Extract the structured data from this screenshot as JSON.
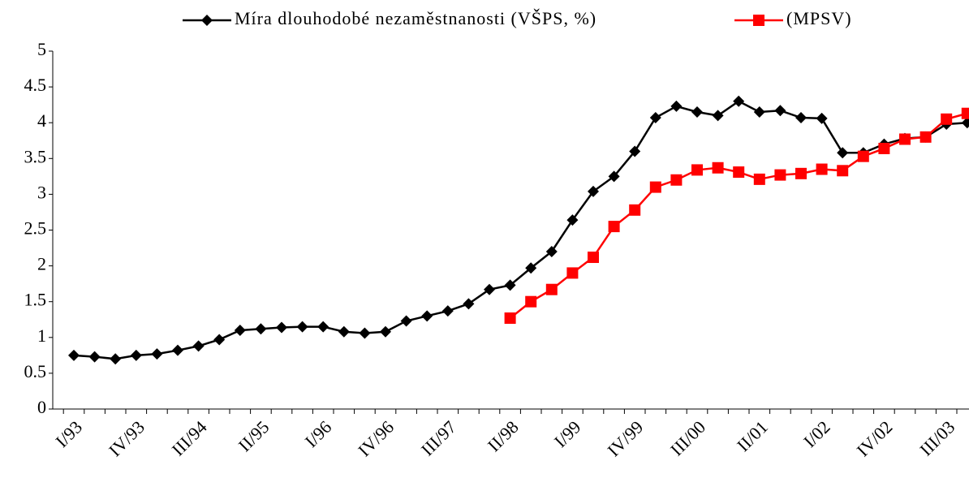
{
  "chart_data": {
    "type": "line",
    "categories": [
      "I/93",
      null,
      null,
      "IV/93",
      null,
      null,
      "III/94",
      null,
      null,
      "II/95",
      null,
      null,
      "I/96",
      null,
      null,
      "IV/96",
      null,
      null,
      "III/97",
      null,
      null,
      "II/98",
      null,
      null,
      "I/99",
      null,
      null,
      "IV/99",
      null,
      null,
      "III/00",
      null,
      null,
      "II/01",
      null,
      null,
      "I/02",
      null,
      null,
      "IV/02",
      null,
      null,
      "III/03",
      null
    ],
    "series": [
      {
        "name": "Míra dlouhodobé nezaměstnanosti (VŠPS, %)",
        "color": "#000000",
        "marker": "diamond",
        "values": [
          0.75,
          0.73,
          0.7,
          0.75,
          0.77,
          0.82,
          0.88,
          0.97,
          1.1,
          1.12,
          1.14,
          1.15,
          1.15,
          1.08,
          1.06,
          1.08,
          1.23,
          1.3,
          1.37,
          1.47,
          1.67,
          1.73,
          1.97,
          2.2,
          2.64,
          3.04,
          3.25,
          3.6,
          4.07,
          4.23,
          4.15,
          4.1,
          4.3,
          4.15,
          4.17,
          4.07,
          4.06,
          3.58,
          3.58,
          3.7,
          3.78,
          3.8,
          3.98,
          4.0
        ]
      },
      {
        "name": "(MPSV)",
        "color": "#ff0000",
        "marker": "square",
        "values": [
          null,
          null,
          null,
          null,
          null,
          null,
          null,
          null,
          null,
          null,
          null,
          null,
          null,
          null,
          null,
          null,
          null,
          null,
          null,
          null,
          null,
          1.27,
          1.5,
          1.67,
          1.9,
          2.12,
          2.55,
          2.78,
          3.1,
          3.2,
          3.34,
          3.37,
          3.31,
          3.21,
          3.27,
          3.29,
          3.35,
          3.33,
          3.53,
          3.64,
          3.77,
          3.8,
          4.05,
          4.13
        ]
      }
    ],
    "ylim": [
      0,
      5
    ],
    "yticks": [
      0,
      0.5,
      1,
      1.5,
      2,
      2.5,
      3,
      3.5,
      4,
      4.5,
      5
    ],
    "grid": false,
    "legend": "top"
  }
}
